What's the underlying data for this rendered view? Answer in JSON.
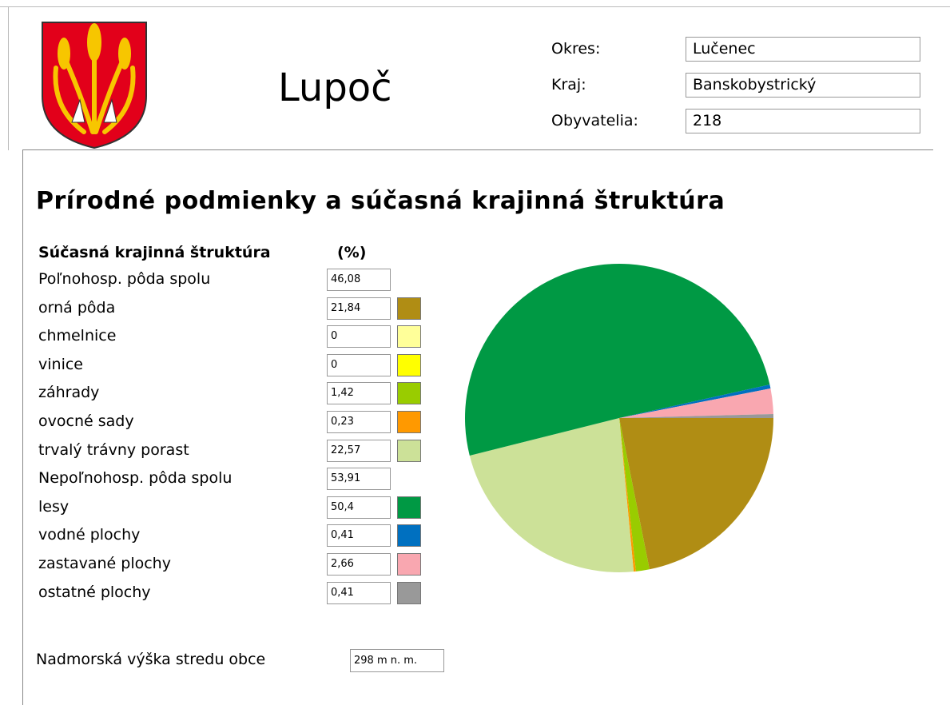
{
  "header": {
    "title": "Lupoč",
    "fields": [
      {
        "label": "Okres:",
        "value": "Lučenec"
      },
      {
        "label": "Kraj:",
        "value": "Banskobystrický"
      },
      {
        "label": "Obyvatelia:",
        "value": "218"
      }
    ]
  },
  "section_title": "Prírodné podmienky a súčasná krajinná štruktúra",
  "chart_data": {
    "type": "pie",
    "title": "Súčasná krajinná štruktúra",
    "unit": "(%)",
    "groups": [
      {
        "name": "Poľnohosp. pôda spolu",
        "total": 46.08,
        "total_label": "46,08",
        "categories": [
          "orná pôda",
          "chmelnice",
          "vinice",
          "záhrady",
          "ovocné sady",
          "trvalý trávny porast"
        ],
        "values": [
          21.84,
          0,
          0,
          1.42,
          0.23,
          22.57
        ],
        "value_labels": [
          "21,84",
          "0",
          "0",
          "1,42",
          "0,23",
          "22,57"
        ],
        "colors": [
          "#b08d14",
          "#ffff99",
          "#ffff00",
          "#99cc00",
          "#ff9900",
          "#cce198"
        ]
      },
      {
        "name": "Nepoľnohosp. pôda spolu",
        "total": 53.91,
        "total_label": "53,91",
        "categories": [
          "lesy",
          "vodné plochy",
          "zastavané plochy",
          "ostatné plochy"
        ],
        "values": [
          50.4,
          0.41,
          2.66,
          0.41
        ],
        "value_labels": [
          "50,4",
          "0,41",
          "2,66",
          "0,41"
        ],
        "colors": [
          "#009944",
          "#0070c0",
          "#f9a7b0",
          "#999999"
        ]
      }
    ]
  },
  "elevation": {
    "label": "Nadmorská výška stredu obce",
    "value": "298 m n. m."
  }
}
